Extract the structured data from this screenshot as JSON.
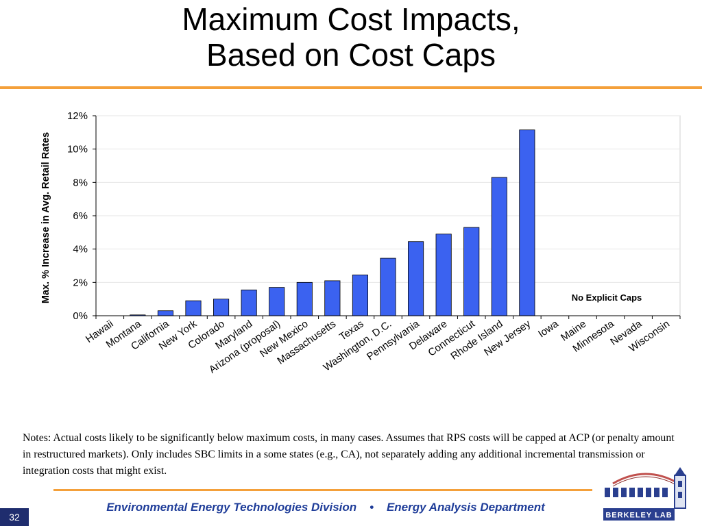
{
  "slide": {
    "title_line1": "Maximum Cost Impacts,",
    "title_line2": "Based on Cost Caps",
    "notes": "Notes: Actual costs likely to be significantly below maximum costs, in many cases. Assumes that RPS costs will be capped at ACP (or penalty amount in restructured markets). Only includes SBC limits in a some states (e.g., CA), not separately adding any additional incremental transmission or integration costs that might exist.",
    "footer_left": "Environmental Energy Technologies Division",
    "footer_sep": "•",
    "footer_right": "Energy Analysis Department",
    "page_number": "32",
    "logo_text": "BERKELEY LAB"
  },
  "colors": {
    "bar": "#3b62f0",
    "accent_rule": "#f4a03a",
    "footer_text": "#1f3d99",
    "page_number_bg": "#1f2d6e"
  },
  "chart_data": {
    "type": "bar",
    "ylabel": "Max. % Increase in Avg. Retail Rates",
    "ylim": [
      0,
      12
    ],
    "yticks": [
      "0%",
      "2%",
      "4%",
      "6%",
      "8%",
      "10%",
      "12%"
    ],
    "grid": true,
    "annotation": "No Explicit Caps",
    "categories": [
      "Hawaii",
      "Montana",
      "California",
      "New York",
      "Colorado",
      "Maryland",
      "Arizona (proposal)",
      "New Mexico",
      "Massachusetts",
      "Texas",
      "Washington, D.C.",
      "Pennsylvania",
      "Delaware",
      "Connecticut",
      "Rhode Island",
      "New Jersey",
      "Iowa",
      "Maine",
      "Minnesota",
      "Nevada",
      "Wisconsin"
    ],
    "values": [
      0,
      0.05,
      0.3,
      0.9,
      1.0,
      1.55,
      1.7,
      2.0,
      2.1,
      2.45,
      3.45,
      4.45,
      4.9,
      5.3,
      8.3,
      11.15,
      null,
      null,
      null,
      null,
      null
    ]
  }
}
